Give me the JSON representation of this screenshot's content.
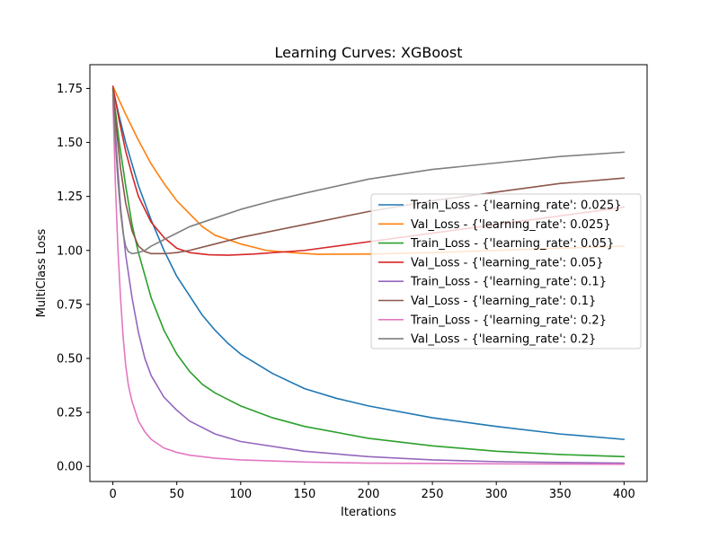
{
  "chart_data": {
    "type": "line",
    "title": "Learning Curves: XGBoost",
    "xlabel": "Iterations",
    "ylabel": "MultiClass Loss",
    "xlim": [
      -18,
      418
    ],
    "ylim": [
      -0.07,
      1.86
    ],
    "xticks": [
      0,
      50,
      100,
      150,
      200,
      250,
      300,
      350,
      400
    ],
    "yticks": [
      0.0,
      0.25,
      0.5,
      0.75,
      1.0,
      1.25,
      1.5,
      1.75
    ],
    "ytick_labels": [
      "0.00",
      "0.25",
      "0.50",
      "0.75",
      "1.00",
      "1.25",
      "1.50",
      "1.75"
    ],
    "grid": false,
    "legend_position": "center-right",
    "series": [
      {
        "name": "Train_Loss - {'learning_rate': 0.025}",
        "color": "#1f77b4",
        "points": [
          [
            0,
            1.75
          ],
          [
            5,
            1.62
          ],
          [
            10,
            1.5
          ],
          [
            20,
            1.3
          ],
          [
            30,
            1.14
          ],
          [
            40,
            1.0
          ],
          [
            50,
            0.88
          ],
          [
            60,
            0.79
          ],
          [
            70,
            0.7
          ],
          [
            80,
            0.63
          ],
          [
            90,
            0.57
          ],
          [
            100,
            0.52
          ],
          [
            125,
            0.43
          ],
          [
            150,
            0.36
          ],
          [
            175,
            0.315
          ],
          [
            200,
            0.28
          ],
          [
            250,
            0.225
          ],
          [
            300,
            0.185
          ],
          [
            350,
            0.15
          ],
          [
            400,
            0.125
          ]
        ]
      },
      {
        "name": "Val_Loss - {'learning_rate': 0.025}",
        "color": "#ff7f0e",
        "points": [
          [
            0,
            1.76
          ],
          [
            10,
            1.63
          ],
          [
            20,
            1.51
          ],
          [
            30,
            1.4
          ],
          [
            40,
            1.31
          ],
          [
            50,
            1.23
          ],
          [
            60,
            1.17
          ],
          [
            70,
            1.11
          ],
          [
            80,
            1.07
          ],
          [
            100,
            1.03
          ],
          [
            120,
            1.0
          ],
          [
            140,
            0.99
          ],
          [
            160,
            0.982
          ],
          [
            200,
            0.983
          ],
          [
            250,
            0.99
          ],
          [
            300,
            1.0
          ],
          [
            350,
            1.01
          ],
          [
            400,
            1.02
          ]
        ]
      },
      {
        "name": "Train_Loss - {'learning_rate': 0.05}",
        "color": "#2ca02c",
        "points": [
          [
            0,
            1.74
          ],
          [
            5,
            1.5
          ],
          [
            10,
            1.3
          ],
          [
            15,
            1.12
          ],
          [
            20,
            0.99
          ],
          [
            30,
            0.78
          ],
          [
            40,
            0.63
          ],
          [
            50,
            0.52
          ],
          [
            60,
            0.44
          ],
          [
            70,
            0.38
          ],
          [
            80,
            0.34
          ],
          [
            100,
            0.28
          ],
          [
            125,
            0.225
          ],
          [
            150,
            0.185
          ],
          [
            200,
            0.13
          ],
          [
            250,
            0.095
          ],
          [
            300,
            0.07
          ],
          [
            350,
            0.055
          ],
          [
            400,
            0.045
          ]
        ]
      },
      {
        "name": "Val_Loss - {'learning_rate': 0.05}",
        "color": "#d62728",
        "points": [
          [
            0,
            1.76
          ],
          [
            5,
            1.6
          ],
          [
            10,
            1.46
          ],
          [
            15,
            1.35
          ],
          [
            20,
            1.25
          ],
          [
            30,
            1.13
          ],
          [
            40,
            1.06
          ],
          [
            50,
            1.01
          ],
          [
            60,
            0.99
          ],
          [
            75,
            0.98
          ],
          [
            90,
            0.978
          ],
          [
            110,
            0.983
          ],
          [
            150,
            1.0
          ],
          [
            200,
            1.04
          ],
          [
            250,
            1.08
          ],
          [
            300,
            1.12
          ],
          [
            350,
            1.16
          ],
          [
            400,
            1.2
          ]
        ]
      },
      {
        "name": "Train_Loss - {'learning_rate': 0.1}",
        "color": "#9467bd",
        "points": [
          [
            0,
            1.72
          ],
          [
            3,
            1.45
          ],
          [
            6,
            1.2
          ],
          [
            10,
            0.98
          ],
          [
            15,
            0.78
          ],
          [
            20,
            0.62
          ],
          [
            25,
            0.5
          ],
          [
            30,
            0.42
          ],
          [
            40,
            0.32
          ],
          [
            50,
            0.26
          ],
          [
            60,
            0.21
          ],
          [
            80,
            0.15
          ],
          [
            100,
            0.115
          ],
          [
            150,
            0.07
          ],
          [
            200,
            0.045
          ],
          [
            250,
            0.03
          ],
          [
            300,
            0.022
          ],
          [
            350,
            0.018
          ],
          [
            400,
            0.015
          ]
        ]
      },
      {
        "name": "Val_Loss - {'learning_rate': 0.1}",
        "color": "#8c564b",
        "points": [
          [
            0,
            1.75
          ],
          [
            3,
            1.55
          ],
          [
            6,
            1.38
          ],
          [
            10,
            1.22
          ],
          [
            15,
            1.09
          ],
          [
            20,
            1.02
          ],
          [
            25,
            0.995
          ],
          [
            30,
            0.985
          ],
          [
            40,
            0.985
          ],
          [
            50,
            0.99
          ],
          [
            60,
            1.0
          ],
          [
            80,
            1.03
          ],
          [
            100,
            1.06
          ],
          [
            150,
            1.12
          ],
          [
            200,
            1.18
          ],
          [
            250,
            1.23
          ],
          [
            300,
            1.27
          ],
          [
            350,
            1.31
          ],
          [
            400,
            1.335
          ]
        ]
      },
      {
        "name": "Train_Loss - {'learning_rate': 0.2}",
        "color": "#e377c2",
        "points": [
          [
            0,
            1.7
          ],
          [
            2,
            1.3
          ],
          [
            4,
            1.0
          ],
          [
            6,
            0.78
          ],
          [
            8,
            0.6
          ],
          [
            10,
            0.47
          ],
          [
            12,
            0.38
          ],
          [
            15,
            0.3
          ],
          [
            20,
            0.21
          ],
          [
            25,
            0.16
          ],
          [
            30,
            0.125
          ],
          [
            40,
            0.085
          ],
          [
            50,
            0.065
          ],
          [
            60,
            0.052
          ],
          [
            80,
            0.038
          ],
          [
            100,
            0.03
          ],
          [
            150,
            0.02
          ],
          [
            200,
            0.015
          ],
          [
            300,
            0.012
          ],
          [
            400,
            0.01
          ]
        ]
      },
      {
        "name": "Val_Loss - {'learning_rate': 0.2}",
        "color": "#7f7f7f",
        "points": [
          [
            0,
            1.73
          ],
          [
            2,
            1.5
          ],
          [
            4,
            1.32
          ],
          [
            6,
            1.18
          ],
          [
            8,
            1.08
          ],
          [
            10,
            1.02
          ],
          [
            12,
            0.995
          ],
          [
            15,
            0.985
          ],
          [
            20,
            0.99
          ],
          [
            25,
            1.0
          ],
          [
            30,
            1.02
          ],
          [
            40,
            1.05
          ],
          [
            50,
            1.08
          ],
          [
            60,
            1.11
          ],
          [
            80,
            1.15
          ],
          [
            100,
            1.19
          ],
          [
            125,
            1.23
          ],
          [
            150,
            1.265
          ],
          [
            200,
            1.33
          ],
          [
            250,
            1.375
          ],
          [
            300,
            1.405
          ],
          [
            350,
            1.435
          ],
          [
            400,
            1.455
          ]
        ]
      }
    ]
  }
}
